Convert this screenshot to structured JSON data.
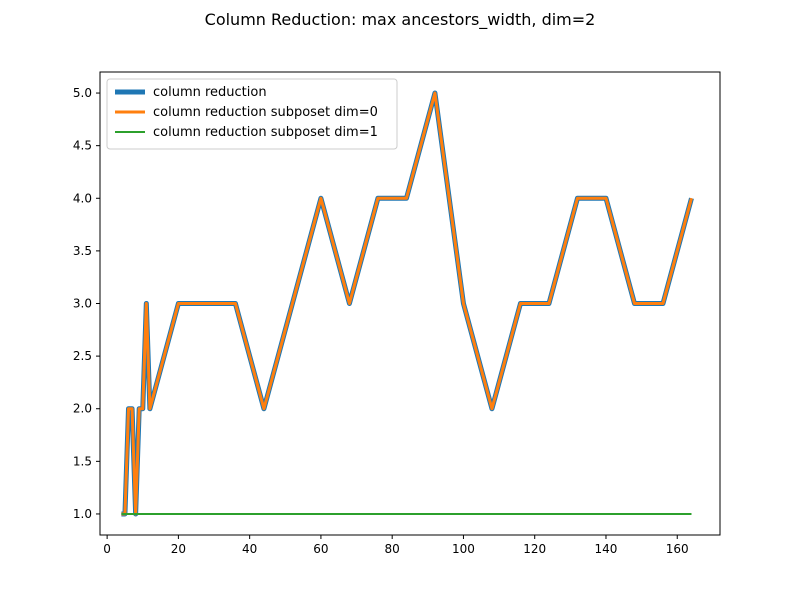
{
  "chart_data": {
    "type": "line",
    "title": "Column Reduction: max ancestors_width, dim=2",
    "xlabel": "",
    "ylabel": "",
    "xlim": [
      -2.0,
      172.0
    ],
    "ylim": [
      0.8,
      5.2
    ],
    "xticks": [
      0,
      20,
      40,
      60,
      80,
      100,
      120,
      140,
      160
    ],
    "yticks": [
      1.0,
      1.5,
      2.0,
      2.5,
      3.0,
      3.5,
      4.0,
      4.5,
      5.0
    ],
    "xtick_labels": [
      "0",
      "20",
      "40",
      "60",
      "80",
      "100",
      "120",
      "140",
      "160"
    ],
    "ytick_labels": [
      "1.0",
      "1.5",
      "2.0",
      "2.5",
      "3.0",
      "3.5",
      "4.0",
      "4.5",
      "5.0"
    ],
    "grid": false,
    "legend_position": "top-left",
    "series": [
      {
        "name": "column reduction",
        "color": "#1f77b4",
        "x": [
          4,
          5,
          6,
          7,
          8,
          9,
          10,
          11,
          12,
          20,
          28,
          36,
          44,
          52,
          60,
          68,
          76,
          84,
          92,
          100,
          108,
          116,
          124,
          132,
          140,
          148,
          156,
          164
        ],
        "y": [
          1,
          1,
          2,
          2,
          1,
          2,
          2,
          3,
          2,
          3,
          3,
          3,
          2,
          3,
          4,
          3,
          4,
          4,
          5,
          3,
          2,
          3,
          3,
          4,
          4,
          3,
          3,
          4
        ]
      },
      {
        "name": "column reduction subposet dim=0",
        "color": "#ff7f0e",
        "x": [
          4,
          5,
          6,
          7,
          8,
          9,
          10,
          11,
          12,
          20,
          28,
          36,
          44,
          52,
          60,
          68,
          76,
          84,
          92,
          100,
          108,
          116,
          124,
          132,
          140,
          148,
          156,
          164
        ],
        "y": [
          1,
          1,
          2,
          2,
          1,
          2,
          2,
          3,
          2,
          3,
          3,
          3,
          2,
          3,
          4,
          3,
          4,
          4,
          5,
          3,
          2,
          3,
          3,
          4,
          4,
          3,
          3,
          4
        ]
      },
      {
        "name": "column reduction subposet dim=1",
        "color": "#2ca02c",
        "x": [
          4,
          164
        ],
        "y": [
          1,
          1
        ]
      }
    ]
  }
}
